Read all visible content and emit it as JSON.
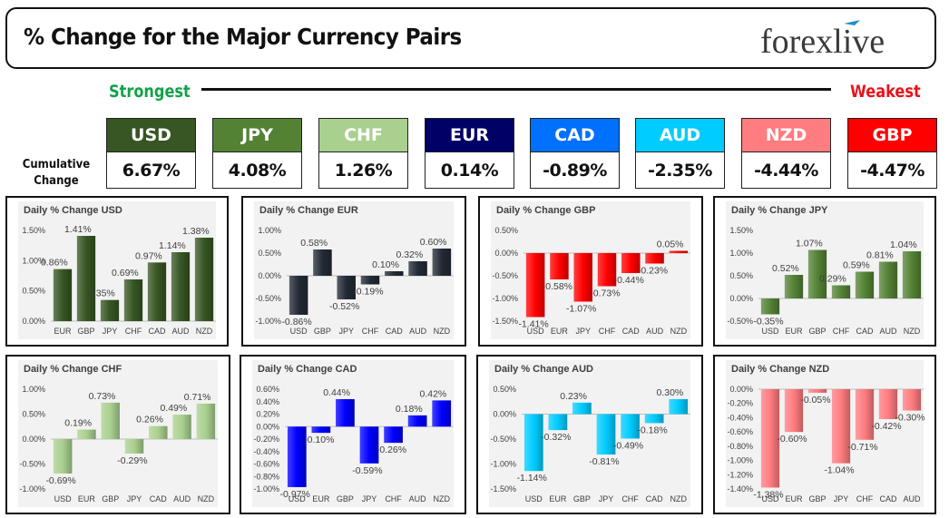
{
  "header": {
    "title": "% Change for the Major Currency Pairs",
    "logo_text": "forexlive"
  },
  "scale": {
    "strongest_label": "Strongest",
    "weakest_label": "Weakest",
    "cumulative_label_1": "Cumulative",
    "cumulative_label_2": "Change"
  },
  "currencies": [
    {
      "code": "USD",
      "value": "6.67%",
      "color": "#375623"
    },
    {
      "code": "JPY",
      "value": "4.08%",
      "color": "#548235"
    },
    {
      "code": "CHF",
      "value": "1.26%",
      "color": "#a9d08e"
    },
    {
      "code": "EUR",
      "value": "0.14%",
      "color": "#000066"
    },
    {
      "code": "CAD",
      "value": "-0.89%",
      "color": "#0070ff"
    },
    {
      "code": "AUD",
      "value": "-2.35%",
      "color": "#00ccff"
    },
    {
      "code": "NZD",
      "value": "-4.44%",
      "color": "#ff7c80"
    },
    {
      "code": "GBP",
      "value": "-4.47%",
      "color": "#ff0000"
    }
  ],
  "chart_data": [
    {
      "type": "bar",
      "title": "Daily % Change USD",
      "categories": [
        "EUR",
        "GBP",
        "JPY",
        "CHF",
        "CAD",
        "AUD",
        "NZD"
      ],
      "values": [
        0.86,
        1.41,
        0.35,
        0.69,
        0.97,
        1.14,
        1.38
      ],
      "labels": [
        "0.86%",
        "1.41%",
        "0.35%",
        "0.69%",
        "0.97%",
        "1.14%",
        "1.38%"
      ],
      "ylim": [
        0,
        1.5
      ],
      "yticks": [
        "0.00%",
        "0.50%",
        "1.00%",
        "1.50%"
      ],
      "color": "#375623"
    },
    {
      "type": "bar",
      "title": "Daily % Change EUR",
      "categories": [
        "USD",
        "GBP",
        "JPY",
        "CHF",
        "CAD",
        "AUD",
        "NZD"
      ],
      "values": [
        -0.86,
        0.58,
        -0.52,
        -0.19,
        0.1,
        0.32,
        0.6
      ],
      "labels": [
        "-0.86%",
        "0.58%",
        "-0.52%",
        "-0.19%",
        "0.10%",
        "0.32%",
        "0.60%"
      ],
      "ylim": [
        -1,
        1
      ],
      "yticks": [
        "-1.00%",
        "-0.50%",
        "0.00%",
        "0.50%",
        "1.00%"
      ],
      "color": "#222a35"
    },
    {
      "type": "bar",
      "title": "Daily % Change GBP",
      "categories": [
        "USD",
        "EUR",
        "JPY",
        "CHF",
        "CAD",
        "AUD",
        "NZD"
      ],
      "values": [
        -1.41,
        -0.58,
        -1.07,
        -0.73,
        -0.44,
        -0.23,
        0.05
      ],
      "labels": [
        "-1.41%",
        "-0.58%",
        "-1.07%",
        "-0.73%",
        "-0.44%",
        "-0.23%",
        "0.05%"
      ],
      "ylim": [
        -1.5,
        0.5
      ],
      "yticks": [
        "-1.50%",
        "-1.00%",
        "-0.50%",
        "0.00%",
        "0.50%"
      ],
      "color": "#ff0000"
    },
    {
      "type": "bar",
      "title": "Daily % Change JPY",
      "categories": [
        "USD",
        "EUR",
        "GBP",
        "CHF",
        "CAD",
        "AUD",
        "NZD"
      ],
      "values": [
        -0.35,
        0.52,
        1.07,
        0.29,
        0.59,
        0.81,
        1.04
      ],
      "labels": [
        "-0.35%",
        "0.52%",
        "1.07%",
        "0.29%",
        "0.59%",
        "0.81%",
        "1.04%"
      ],
      "ylim": [
        -0.5,
        1.5
      ],
      "yticks": [
        "-0.50%",
        "0.00%",
        "0.50%",
        "1.00%",
        "1.50%"
      ],
      "color": "#548235"
    },
    {
      "type": "bar",
      "title": "Daily % Change CHF",
      "categories": [
        "USD",
        "EUR",
        "GBP",
        "JPY",
        "CAD",
        "AUD",
        "NZD"
      ],
      "values": [
        -0.69,
        0.19,
        0.73,
        -0.29,
        0.26,
        0.49,
        0.71
      ],
      "labels": [
        "-0.69%",
        "0.19%",
        "0.73%",
        "-0.29%",
        "0.26%",
        "0.49%",
        "0.71%"
      ],
      "ylim": [
        -1,
        1
      ],
      "yticks": [
        "-1.00%",
        "-0.50%",
        "0.00%",
        "0.50%",
        "1.00%"
      ],
      "color": "#a9d08e"
    },
    {
      "type": "bar",
      "title": "Daily % Change CAD",
      "categories": [
        "USD",
        "EUR",
        "GBP",
        "JPY",
        "CHF",
        "AUD",
        "NZD"
      ],
      "values": [
        -0.97,
        -0.1,
        0.44,
        -0.59,
        -0.26,
        0.18,
        0.42
      ],
      "labels": [
        "-0.97%",
        "-0.10%",
        "0.44%",
        "-0.59%",
        "-0.26%",
        "0.18%",
        "0.42%"
      ],
      "ylim": [
        -1,
        0.6
      ],
      "yticks": [
        "-1.00%",
        "-0.80%",
        "-0.60%",
        "-0.40%",
        "-0.20%",
        "0.00%",
        "0.20%",
        "0.40%",
        "0.60%"
      ],
      "color": "#0000ff"
    },
    {
      "type": "bar",
      "title": "Daily % Change AUD",
      "categories": [
        "USD",
        "EUR",
        "GBP",
        "JPY",
        "CHF",
        "CAD",
        "NZD"
      ],
      "values": [
        -1.14,
        -0.32,
        0.23,
        -0.81,
        -0.49,
        -0.18,
        0.3
      ],
      "labels": [
        "-1.14%",
        "-0.32%",
        "0.23%",
        "-0.81%",
        "-0.49%",
        "-0.18%",
        "0.30%"
      ],
      "ylim": [
        -1.5,
        0.5
      ],
      "yticks": [
        "-1.50%",
        "-1.00%",
        "-0.50%",
        "0.00%",
        "0.50%"
      ],
      "color": "#00ccff"
    },
    {
      "type": "bar",
      "title": "Daily % Change NZD",
      "categories": [
        "USD",
        "EUR",
        "GBP",
        "JPY",
        "CHF",
        "CAD",
        "AUD"
      ],
      "values": [
        -1.38,
        -0.6,
        -0.05,
        -1.04,
        -0.71,
        -0.42,
        -0.3
      ],
      "labels": [
        "-1.38%",
        "-0.60%",
        "-0.05%",
        "-1.04%",
        "-0.71%",
        "-0.42%",
        "-0.30%"
      ],
      "ylim": [
        -1.4,
        0
      ],
      "yticks": [
        "-1.40%",
        "-1.20%",
        "-1.00%",
        "-0.80%",
        "-0.60%",
        "-0.40%",
        "-0.20%",
        "0.00%"
      ],
      "color": "#ff7c80"
    }
  ]
}
